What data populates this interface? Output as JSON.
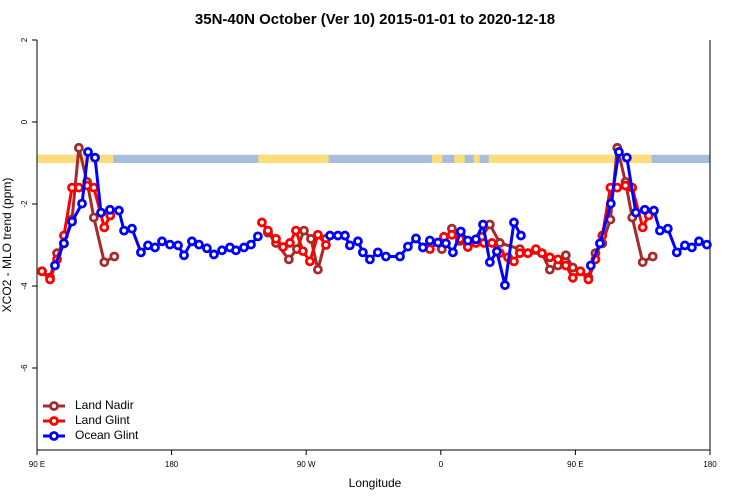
{
  "chart_data": {
    "type": "line",
    "title": "35N-40N October (Ver 10)   2015-01-01 to 2020-12-18",
    "x_label": "Longitude",
    "y_label": "XCO2 - MLO trend (ppm)",
    "xlim": [
      90,
      540
    ],
    "xticks": [
      {
        "value": 90,
        "label": "90 E"
      },
      180,
      {
        "value": 270,
        "label": "90 W"
      },
      {
        "value": 360,
        "label": "0"
      },
      {
        "value": 450,
        "label": "90 E"
      },
      {
        "value": 540,
        "label": "180"
      }
    ],
    "ylim": [
      -8,
      2
    ],
    "yticks": [
      -6,
      -4,
      -2,
      0,
      2
    ],
    "legend": "bottom-left",
    "strip": {
      "ylim": [
        -1,
        -0.8
      ],
      "ocean_color": "#a6bddb",
      "land_color": "#fddc7a",
      "land": [
        [
          90,
          141
        ],
        [
          238,
          285
        ],
        [
          354,
          361
        ],
        [
          369,
          376
        ],
        [
          382,
          386
        ],
        [
          392,
          501
        ]
      ]
    },
    "series": [
      {
        "name": "Land Nadir",
        "color": "#a52a2a",
        "x": [
          93.3,
          98.7,
          103.4,
          108.0,
          113.4,
          118.0,
          123.5,
          128.0,
          135.0,
          141.7,
          null,
          244.4,
          249.8,
          258.4,
          263.8,
          268.5,
          273.2,
          277.8,
          283.2,
          null,
          360.7,
          367.4,
          372.8,
          378.1,
          387.5,
          392.8,
          399.5,
          412.9,
          418.2,
          427.6,
          432.9,
          438.3,
          443.6,
          448.3,
          453.3,
          458.7,
          463.4,
          468.0,
          473.4,
          478.0,
          483.5,
          488.0,
          495.0,
          501.7
        ],
        "values": [
          -3.64,
          -3.79,
          -3.2,
          -2.96,
          -2.38,
          -0.63,
          -1.46,
          -2.33,
          -3.42,
          -3.28,
          null,
          -2.7,
          -2.95,
          -3.35,
          -3.1,
          -2.65,
          -2.85,
          -3.6,
          -2.85,
          null,
          -3.1,
          -2.6,
          -2.9,
          -3.0,
          -2.8,
          -2.5,
          -2.95,
          -3.1,
          -3.2,
          -3.2,
          -3.6,
          -3.5,
          -3.25,
          -3.55,
          -3.64,
          -3.79,
          -3.2,
          -2.96,
          -2.38,
          -0.63,
          -1.46,
          -2.33,
          -3.42,
          -3.28
        ]
      },
      {
        "name": "Land Glint",
        "color": "#ff0000",
        "x": [
          93.3,
          98.7,
          103.4,
          108.0,
          113.4,
          118.0,
          123.5,
          128.0,
          135.0,
          139.0,
          null,
          240.4,
          244.4,
          249.8,
          254.5,
          259.1,
          263.1,
          267.8,
          272.5,
          277.8,
          283.2,
          null,
          352.7,
          362.1,
          367.4,
          372.8,
          378.1,
          383.5,
          388.8,
          394.2,
          399.5,
          404.9,
          408.9,
          412.9,
          418.2,
          423.6,
          427.6,
          432.9,
          438.3,
          443.6,
          448.3,
          453.3,
          458.7,
          463.4,
          468.0,
          473.4,
          478.0,
          483.5,
          488.0,
          495.0,
          499.0
        ],
        "values": [
          -3.64,
          -3.84,
          -3.35,
          -2.77,
          -1.6,
          -1.6,
          -1.55,
          -1.6,
          -2.57,
          -2.28,
          null,
          -2.45,
          -2.65,
          -2.85,
          -3.05,
          -2.95,
          -2.65,
          -3.15,
          -3.4,
          -2.75,
          -3.0,
          null,
          -3.1,
          -2.8,
          -2.75,
          -2.85,
          -3.05,
          -2.95,
          -2.95,
          -2.95,
          -3.2,
          -3.3,
          -3.4,
          -3.2,
          -3.2,
          -3.1,
          -3.2,
          -3.3,
          -3.35,
          -3.5,
          -3.8,
          -3.64,
          -3.84,
          -3.35,
          -2.77,
          -1.6,
          -1.6,
          -1.55,
          -1.6,
          -2.57,
          -2.28
        ]
      },
      {
        "name": "Ocean Glint",
        "color": "#0000ff",
        "x": [
          102.0,
          108.0,
          113.4,
          120.1,
          124.1,
          128.8,
          132.8,
          138.8,
          144.8,
          148.2,
          153.5,
          159.5,
          164.2,
          168.9,
          173.6,
          178.9,
          184.3,
          188.3,
          193.6,
          198.3,
          203.6,
          208.3,
          213.7,
          219.0,
          223.0,
          228.4,
          233.1,
          237.7,
          null,
          285.9,
          291.2,
          295.9,
          299.2,
          304.6,
          307.9,
          312.6,
          317.9,
          323.3,
          332.7,
          338.0,
          343.4,
          348.0,
          352.7,
          358.1,
          363.4,
          368.1,
          373.4,
          378.1,
          383.5,
          388.2,
          392.8,
          397.5,
          402.9,
          408.9,
          413.6,
          null,
          460.3,
          466.4,
          473.7,
          479.1,
          484.4,
          490.4,
          496.4,
          502.5,
          506.5,
          511.8,
          517.8,
          523.2,
          527.9,
          532.6,
          537.9
        ],
        "values": [
          -3.5,
          -2.96,
          -2.43,
          -1.99,
          -0.73,
          -0.87,
          -2.21,
          -2.14,
          -2.16,
          -2.65,
          -2.6,
          -3.18,
          -3.01,
          -3.06,
          -2.91,
          -2.99,
          -3.01,
          -3.25,
          -2.91,
          -2.99,
          -3.08,
          -3.23,
          -3.13,
          -3.06,
          -3.13,
          -3.06,
          -2.99,
          -2.79,
          null,
          -2.77,
          -2.77,
          -2.77,
          -3.01,
          -2.91,
          -3.18,
          -3.35,
          -3.18,
          -3.28,
          -3.28,
          -3.04,
          -2.84,
          -3.06,
          -2.89,
          -2.94,
          -2.96,
          -3.18,
          -2.67,
          -2.89,
          -2.86,
          -2.5,
          -3.42,
          -3.16,
          -3.98,
          -2.45,
          -2.77,
          null,
          -3.5,
          -2.96,
          -1.99,
          -0.73,
          -0.87,
          -2.21,
          -2.14,
          -2.16,
          -2.65,
          -2.6,
          -3.18,
          -3.01,
          -3.06,
          -2.91,
          -2.99
        ]
      }
    ]
  }
}
